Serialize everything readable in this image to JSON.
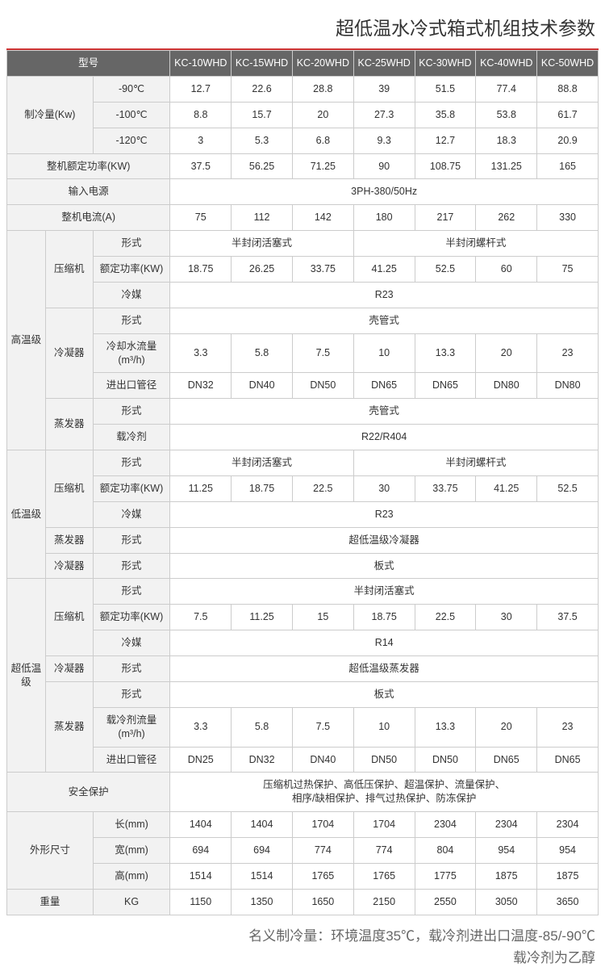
{
  "title": "超低温水冷式箱式机组技术参数",
  "colors": {
    "title_underline": "#cc3333",
    "header_bg": "#666666",
    "header_text": "#ffffff",
    "label_bg": "#f2f2f2",
    "cell_bg": "#ffffff",
    "border": "#cccccc",
    "text": "#333333",
    "footnote_text": "#666666"
  },
  "header": {
    "model_label": "型号",
    "models": [
      "KC-10WHD",
      "KC-15WHD",
      "KC-20WHD",
      "KC-25WHD",
      "KC-30WHD",
      "KC-40WHD",
      "KC-50WHD"
    ]
  },
  "cooling": {
    "group_label": "制冷量(Kw)",
    "t90_label": "-90℃",
    "t90": [
      "12.7",
      "22.6",
      "28.8",
      "39",
      "51.5",
      "77.4",
      "88.8"
    ],
    "t100_label": "-100℃",
    "t100": [
      "8.8",
      "15.7",
      "20",
      "27.3",
      "35.8",
      "53.8",
      "61.7"
    ],
    "t120_label": "-120℃",
    "t120": [
      "3",
      "5.3",
      "6.8",
      "9.3",
      "12.7",
      "18.3",
      "20.9"
    ]
  },
  "rated_power": {
    "label": "整机额定功率(KW)",
    "vals": [
      "37.5",
      "56.25",
      "71.25",
      "90",
      "108.75",
      "131.25",
      "165"
    ]
  },
  "input_power": {
    "label": "输入电源",
    "value": "3PH-380/50Hz"
  },
  "current": {
    "label": "整机电流(A)",
    "vals": [
      "75",
      "112",
      "142",
      "180",
      "217",
      "262",
      "330"
    ]
  },
  "high": {
    "group_label": "高温级",
    "comp_label": "压缩机",
    "comp_type_label": "形式",
    "comp_type_a": "半封闭活塞式",
    "comp_type_b": "半封闭螺杆式",
    "comp_power_label": "额定功率(KW)",
    "comp_power": [
      "18.75",
      "26.25",
      "33.75",
      "41.25",
      "52.5",
      "60",
      "75"
    ],
    "refrigerant_label": "冷媒",
    "refrigerant": "R23",
    "cond_label": "冷凝器",
    "cond_type_label": "形式",
    "cond_type": "壳管式",
    "cool_water_flow_label": "冷却水流量(m³/h)",
    "cool_water_flow": [
      "3.3",
      "5.8",
      "7.5",
      "10",
      "13.3",
      "20",
      "23"
    ],
    "io_dia_label": "进出口管径",
    "io_dia": [
      "DN32",
      "DN40",
      "DN50",
      "DN65",
      "DN65",
      "DN80",
      "DN80"
    ],
    "evap_label": "蒸发器",
    "evap_type_label": "形式",
    "evap_type": "壳管式",
    "carrier_label": "载冷剂",
    "carrier": "R22/R404"
  },
  "low": {
    "group_label": "低温级",
    "comp_label": "压缩机",
    "comp_type_label": "形式",
    "comp_type_a": "半封闭活塞式",
    "comp_type_b": "半封闭螺杆式",
    "comp_power_label": "额定功率(KW)",
    "comp_power": [
      "11.25",
      "18.75",
      "22.5",
      "30",
      "33.75",
      "41.25",
      "52.5"
    ],
    "refrigerant_label": "冷媒",
    "refrigerant": "R23",
    "evap_label": "蒸发器",
    "evap_type_label": "形式",
    "evap_type": "超低温级冷凝器",
    "cond_label": "冷凝器",
    "cond_type_label": "形式",
    "cond_type": "板式"
  },
  "ultra": {
    "group_label": "超低温级",
    "comp_label": "压缩机",
    "comp_type_label": "形式",
    "comp_type": "半封闭活塞式",
    "comp_power_label": "额定功率(KW)",
    "comp_power": [
      "7.5",
      "11.25",
      "15",
      "18.75",
      "22.5",
      "30",
      "37.5"
    ],
    "refrigerant_label": "冷媒",
    "refrigerant": "R14",
    "cond_label": "冷凝器",
    "cond_type_label": "形式",
    "cond_type": "超低温级蒸发器",
    "evap_label": "蒸发器",
    "evap_type_label": "形式",
    "evap_type": "板式",
    "carrier_flow_label": "载冷剂流量(m³/h)",
    "carrier_flow": [
      "3.3",
      "5.8",
      "7.5",
      "10",
      "13.3",
      "20",
      "23"
    ],
    "io_dia_label": "进出口管径",
    "io_dia": [
      "DN25",
      "DN32",
      "DN40",
      "DN50",
      "DN50",
      "DN65",
      "DN65"
    ]
  },
  "safety": {
    "label": "安全保护",
    "text": "压缩机过热保护、高低压保护、超温保护、流量保护、\n相序/缺相保护、排气过热保护、防冻保护"
  },
  "dims": {
    "group_label": "外形尺寸",
    "len_label": "长(mm)",
    "len": [
      "1404",
      "1404",
      "1704",
      "1704",
      "2304",
      "2304",
      "2304"
    ],
    "wid_label": "宽(mm)",
    "wid": [
      "694",
      "694",
      "774",
      "774",
      "804",
      "954",
      "954"
    ],
    "hgt_label": "高(mm)",
    "hgt": [
      "1514",
      "1514",
      "1765",
      "1765",
      "1775",
      "1875",
      "1875"
    ]
  },
  "weight": {
    "label": "重量",
    "unit": "KG",
    "vals": [
      "1150",
      "1350",
      "1650",
      "2150",
      "2550",
      "3050",
      "3650"
    ]
  },
  "footnote": {
    "line1": "名义制冷量：环境温度35℃，载冷剂进出口温度-85/-90℃",
    "line2": "载冷剂为乙醇"
  }
}
